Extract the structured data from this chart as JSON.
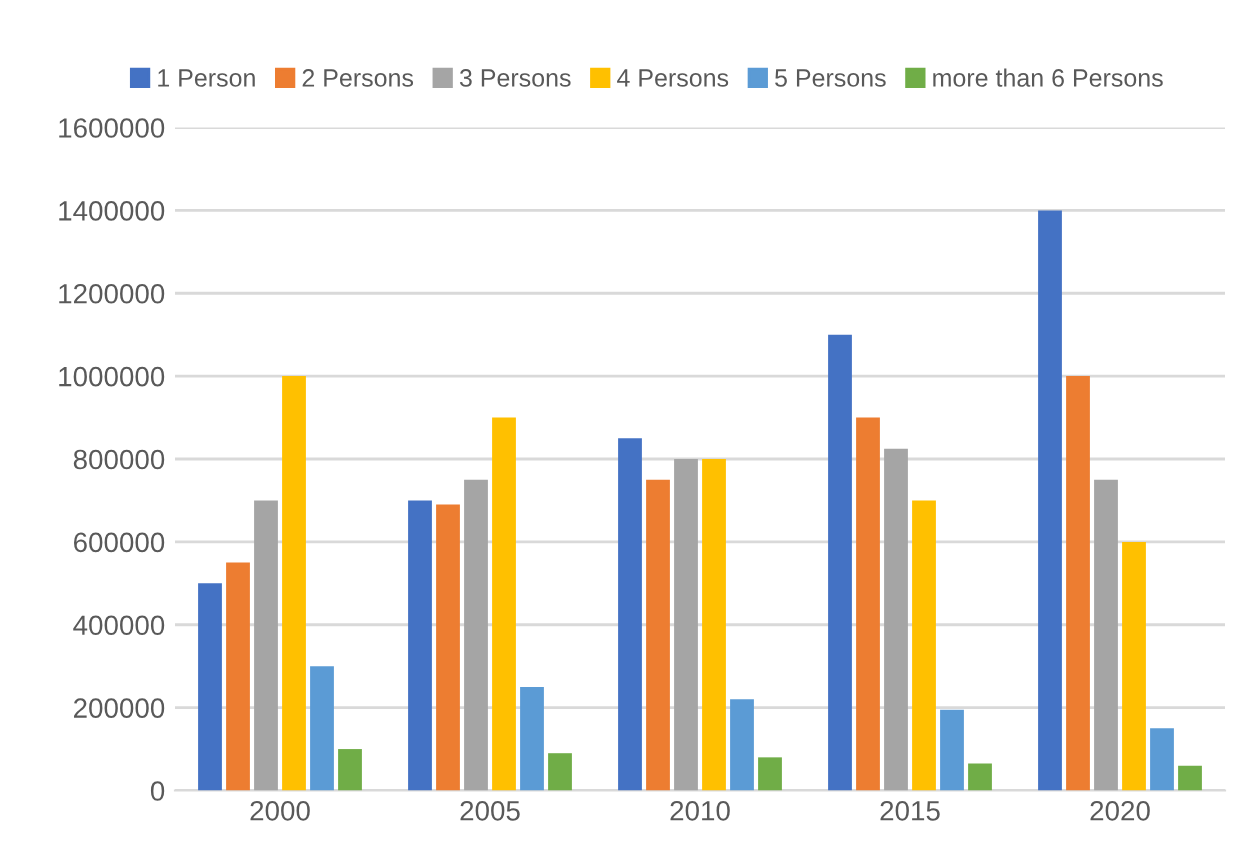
{
  "chart_data": {
    "type": "bar",
    "categories": [
      "2000",
      "2005",
      "2010",
      "2015",
      "2020"
    ],
    "series": [
      {
        "name": "1 Person",
        "color": "#4472c4",
        "values": [
          500000,
          700000,
          850000,
          1100000,
          1400000
        ]
      },
      {
        "name": "2 Persons",
        "color": "#ed7d31",
        "values": [
          550000,
          690000,
          750000,
          900000,
          1000000
        ]
      },
      {
        "name": "3 Persons",
        "color": "#a5a5a5",
        "values": [
          700000,
          750000,
          800000,
          825000,
          750000
        ]
      },
      {
        "name": "4 Persons",
        "color": "#ffc000",
        "values": [
          1000000,
          900000,
          800000,
          700000,
          600000
        ]
      },
      {
        "name": "5 Persons",
        "color": "#5b9bd5",
        "values": [
          300000,
          250000,
          220000,
          195000,
          150000
        ]
      },
      {
        "name": "more than 6 Persons",
        "color": "#70ad47",
        "values": [
          100000,
          90000,
          80000,
          65000,
          60000
        ]
      }
    ],
    "ylim": [
      0,
      1600000
    ],
    "yticks": [
      0,
      200000,
      400000,
      600000,
      800000,
      1000000,
      1200000,
      1400000,
      1600000
    ],
    "grid": "y",
    "legend": "top"
  }
}
